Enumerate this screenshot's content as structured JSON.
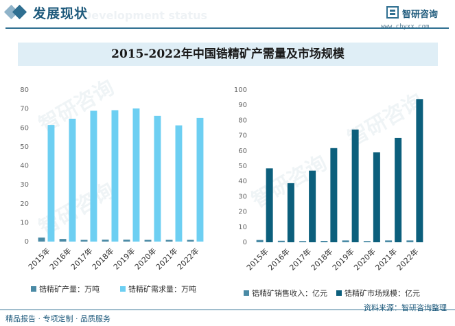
{
  "header": {
    "section_title": "发展现状",
    "ghost_text": "Development status",
    "logo_name": "智研咨询",
    "logo_url": "www.chyxx.com",
    "watermark": "智研咨询"
  },
  "title": "2015-2022年中国锆精矿产需量及市场规模",
  "colors": {
    "primary": "#2f6f91",
    "light_bar": "#6dcff2",
    "dark_bar": "#0c5f7c",
    "small_bar": "#4a8aa5",
    "title_bg": "#dfeef6"
  },
  "chart_data": [
    {
      "type": "bar",
      "categories": [
        "2015年",
        "2016年",
        "2017年",
        "2018年",
        "2019年",
        "2020年",
        "2021年",
        "2022年"
      ],
      "ylim": [
        0,
        80
      ],
      "yticks": [
        0,
        10,
        20,
        30,
        40,
        50,
        60,
        70,
        80
      ],
      "grid": false,
      "legend_position": "bottom",
      "series": [
        {
          "name": "锆精矿产量：万吨",
          "values": [
            2.1,
            1.4,
            0.9,
            1.0,
            1.0,
            0.9,
            0.9,
            0.9
          ]
        },
        {
          "name": "锆精矿需求量：万吨",
          "values": [
            61.5,
            64.8,
            69.0,
            69.3,
            70.2,
            66.3,
            61.3,
            65.2
          ]
        }
      ]
    },
    {
      "type": "bar",
      "categories": [
        "2015年",
        "2016年",
        "2017年",
        "2018年",
        "2019年",
        "2020年",
        "2021年",
        "2022年"
      ],
      "ylim": [
        0,
        100
      ],
      "yticks": [
        0,
        10,
        20,
        30,
        40,
        50,
        60,
        70,
        80,
        90,
        100
      ],
      "grid": false,
      "legend_position": "bottom",
      "series": [
        {
          "name": "锆精矿销售收入：亿元",
          "values": [
            1.5,
            1.0,
            0.8,
            0.9,
            1.2,
            0.8,
            1.2,
            1.2
          ]
        },
        {
          "name": "锆精矿市场规模：亿元",
          "values": [
            48.5,
            38.8,
            47.0,
            61.8,
            74.0,
            59.0,
            68.5,
            94.0
          ]
        }
      ]
    }
  ],
  "footer": {
    "left": "精品报告 · 专项定制 · 品质服务",
    "right": "资料来源：智研咨询整理"
  }
}
